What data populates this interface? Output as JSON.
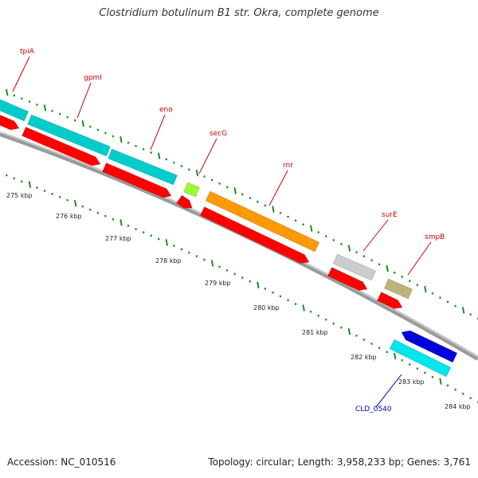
{
  "title": "Clostridium botulinum B1 str. Okra, complete genome",
  "footer": {
    "accession": "Accession: NC_010516",
    "topology": "Topology: circular; Length: 3,958,233 bp; Genes: 3,761"
  },
  "colors": {
    "backbone": "#9a9a9a",
    "tick": "#228b22",
    "cds": "#ff0000",
    "label_forward": "#cc0000",
    "label_reverse": "#0000aa"
  },
  "ruler": [
    {
      "label": "275 kbp"
    },
    {
      "label": "276 kbp"
    },
    {
      "label": "277 kbp"
    },
    {
      "label": "278 kbp"
    },
    {
      "label": "279 kbp"
    },
    {
      "label": "280 kbp"
    },
    {
      "label": "281 kbp"
    },
    {
      "label": "282 kbp"
    },
    {
      "label": "283 kbp"
    },
    {
      "label": "284 kbp"
    }
  ],
  "genes": [
    {
      "name": "tpiA",
      "color": "#00cccc",
      "strand": "forward"
    },
    {
      "name": "gpmI",
      "color": "#00cccc",
      "strand": "forward"
    },
    {
      "name": "eno",
      "color": "#00cccc",
      "strand": "forward"
    },
    {
      "name": "secG",
      "color": "#99ff33",
      "strand": "forward"
    },
    {
      "name": "rnr",
      "color": "#ff9900",
      "strand": "forward"
    },
    {
      "name": "surE",
      "color": "#cccccc",
      "strand": "forward"
    },
    {
      "name": "smpB",
      "color": "#bfb478",
      "strand": "forward"
    },
    {
      "name": "",
      "color": "#0000dd",
      "strand": "reverse"
    },
    {
      "name": "CLD_0540",
      "color": "#00e5ee",
      "strand": "reverse"
    }
  ]
}
